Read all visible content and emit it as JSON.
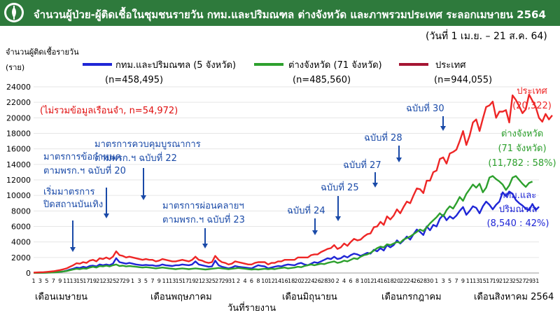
{
  "header": {
    "title": "จำนวนผู้ป่วย-ผู้ติดเชื้อในชุมชนรายวัน กทม.และปริมณฑล ต่างจังหวัด และภาพรวมประเทศ ระลอกเมษายน 2564",
    "date_range": "(วันที่ 1 เม.ย. – 21 ส.ค. 64)"
  },
  "colors": {
    "header_bg": "#2e7a3c",
    "bangkok": "#1f26d6",
    "provinces": "#2da02d",
    "country_legend": "#a51533",
    "country_line": "#ee2626",
    "annotation": "#1a4aa8"
  },
  "legend": [
    {
      "label": "กทม.และปริมณฑล (5 จังหวัด)",
      "total": "(n=458,495)"
    },
    {
      "label": "ต่างจังหวัด (71 จังหวัด)",
      "total": "(n=485,560)"
    },
    {
      "label": "ประเทศ",
      "total": "(n=944,055)"
    }
  ],
  "note": "(ไม่รวมข้อมูลเรือนจำ, n=54,972)",
  "chart_data": {
    "type": "line",
    "ylabel": "จำนวนผู้ติดเชื้อรายวัน (ราย)",
    "xlabel": "วันที่รายงาน",
    "ylim": [
      0,
      24000
    ],
    "yticks": [
      0,
      2000,
      4000,
      6000,
      8000,
      10000,
      12000,
      14000,
      16000,
      18000,
      20000,
      22000,
      24000
    ],
    "x_tick_labels": [
      "1",
      "3",
      "5",
      "7",
      "9",
      "11",
      "13",
      "15",
      "17",
      "19",
      "21",
      "23",
      "25",
      "27",
      "29",
      "1",
      "3",
      "5",
      "7",
      "9",
      "11",
      "13",
      "15",
      "17",
      "19",
      "21",
      "23",
      "25",
      "27",
      "29",
      "31",
      "2",
      "4",
      "6",
      "8",
      "10",
      "12",
      "14",
      "16",
      "18",
      "20",
      "22",
      "24",
      "26",
      "28",
      "30",
      "2",
      "4",
      "6",
      "8",
      "10",
      "12",
      "14",
      "16",
      "18",
      "20",
      "22",
      "24",
      "26",
      "28",
      "30",
      "1",
      "3",
      "5",
      "7",
      "9",
      "11",
      "13",
      "15",
      "17",
      "19",
      "21",
      "23",
      "25",
      "27",
      "29",
      "31"
    ],
    "months": [
      "เดือนเมษายน",
      "เดือนพฤษภาคม",
      "เดือนมิถุนายน",
      "เดือนกรกฎาคม",
      "เดือนสิงหาคม 2564"
    ],
    "series": [
      {
        "name": "กทม.และปริมณฑล (5 จังหวัด)",
        "end_label": "กทม.และ\nปริมณฑล\n(8,540 : 42%)",
        "values": [
          20,
          25,
          30,
          40,
          50,
          70,
          90,
          120,
          150,
          200,
          300,
          450,
          550,
          700,
          650,
          800,
          700,
          900,
          950,
          850,
          1100,
          1000,
          1100,
          1000,
          1200,
          1900,
          1400,
          1300,
          1200,
          1300,
          1200,
          1100,
          1050,
          1000,
          1050,
          1000,
          1000,
          900,
          950,
          1100,
          1000,
          950,
          900,
          1000,
          1000,
          1100,
          1050,
          1000,
          1100,
          1500,
          1100,
          1000,
          900,
          800,
          850,
          1600,
          1000,
          800,
          700,
          600,
          700,
          900,
          800,
          750,
          700,
          650,
          600,
          800,
          1000,
          900,
          850,
          600,
          700,
          800,
          900,
          850,
          1000,
          1100,
          1050,
          1000,
          1200,
          1300,
          1100,
          1000,
          1200,
          1400,
          1300,
          1500,
          1700,
          1900,
          1800,
          2100,
          1800,
          1900,
          2200,
          2000,
          2300,
          2500,
          2400,
          2200,
          2400,
          2600,
          2500,
          3000,
          2800,
          3200,
          2900,
          3600,
          3300,
          3600,
          4200,
          3800,
          4200,
          4700,
          4300,
          5000,
          5600,
          5300,
          4900,
          6000,
          5500,
          6200,
          6000,
          7000,
          7500,
          6800,
          7300,
          7000,
          7400,
          8000,
          8500,
          7500,
          8000,
          8600,
          8400,
          7700,
          8600,
          9200,
          8800,
          8200,
          8800,
          9200,
          10400,
          9900,
          10500,
          10200,
          9400,
          9000,
          8700,
          8300,
          8100,
          8900,
          8100,
          8540
        ]
      },
      {
        "name": "ต่างจังหวัด (71 จังหวัด)",
        "end_label": "ต่างจังหวัด\n(71 จังหวัด)\n(11,782 : 58%)",
        "values": [
          15,
          20,
          25,
          30,
          40,
          50,
          70,
          100,
          150,
          200,
          250,
          350,
          450,
          550,
          500,
          600,
          550,
          700,
          800,
          700,
          900,
          850,
          950,
          850,
          1000,
          1100,
          900,
          950,
          850,
          900,
          850,
          800,
          750,
          700,
          750,
          700,
          650,
          600,
          650,
          700,
          650,
          600,
          550,
          500,
          550,
          600,
          550,
          500,
          550,
          600,
          550,
          500,
          450,
          500,
          550,
          600,
          650,
          600,
          550,
          500,
          550,
          600,
          650,
          600,
          550,
          500,
          450,
          500,
          450,
          500,
          550,
          500,
          550,
          500,
          600,
          650,
          700,
          600,
          650,
          700,
          800,
          750,
          900,
          1000,
          1100,
          1000,
          1100,
          1200,
          1150,
          1300,
          1400,
          1500,
          1300,
          1400,
          1600,
          1500,
          1700,
          1900,
          1800,
          2100,
          2300,
          2400,
          2600,
          2900,
          3200,
          3400,
          3300,
          3700,
          3600,
          3800,
          4000,
          3900,
          4300,
          4500,
          4700,
          5000,
          5300,
          5600,
          5400,
          5900,
          6400,
          6800,
          7200,
          7700,
          7300,
          8100,
          8600,
          8300,
          9000,
          9800,
          9300,
          10200,
          10800,
          11400,
          11000,
          11500,
          10400,
          11000,
          12300,
          12500,
          12100,
          11800,
          11400,
          10700,
          11300,
          12300,
          12500,
          12000,
          11500,
          11100,
          11600,
          11782
        ]
      },
      {
        "name": "ประเทศ",
        "end_label": "ประเทศ\n(20,322)",
        "values": [
          50,
          70,
          90,
          110,
          140,
          180,
          230,
          300,
          380,
          480,
          600,
          800,
          1000,
          1250,
          1200,
          1400,
          1300,
          1600,
          1700,
          1500,
          1900,
          1800,
          2000,
          1800,
          2100,
          2800,
          2300,
          2200,
          2000,
          2100,
          2000,
          1900,
          1800,
          1700,
          1800,
          1700,
          1700,
          1500,
          1600,
          1800,
          1700,
          1600,
          1500,
          1500,
          1600,
          1700,
          1600,
          1500,
          1700,
          2100,
          1700,
          1600,
          1400,
          1300,
          1400,
          2200,
          1700,
          1400,
          1300,
          1100,
          1200,
          1500,
          1400,
          1300,
          1200,
          1100,
          1100,
          1300,
          1400,
          1400,
          1400,
          1100,
          1300,
          1300,
          1500,
          1500,
          1700,
          1700,
          1700,
          1700,
          2000,
          2000,
          2000,
          2000,
          2300,
          2400,
          2400,
          2700,
          2900,
          3100,
          3200,
          3600,
          3100,
          3300,
          3800,
          3500,
          4000,
          4400,
          4200,
          4300,
          4700,
          5000,
          5100,
          5900,
          6000,
          6600,
          6200,
          7300,
          6900,
          7400,
          8200,
          7700,
          8500,
          9200,
          9000,
          10000,
          10900,
          10800,
          10300,
          11900,
          11900,
          13000,
          13200,
          14700,
          14900,
          14100,
          15400,
          15600,
          15900,
          17000,
          18300,
          16500,
          17700,
          19400,
          19800,
          18300,
          19900,
          21400,
          21600,
          22100,
          20000,
          20800,
          20800,
          21000,
          19400,
          22900,
          22300,
          21500,
          20600,
          21100,
          23000,
          22200,
          21400,
          20000,
          19500,
          20500,
          19800,
          20322
        ]
      }
    ],
    "annotations": [
      {
        "text": "เริ่มมาตรการ\nปิดสถานบันเทิง"
      },
      {
        "text": "มาตรการข้อกำหนด\nตามพรก.ฯ ฉบับที่ 20"
      },
      {
        "text": "มาตรการควบคุมบูรณาการ\nตามพรก.ฯ ฉบับที่ 22"
      },
      {
        "text": "มาตรการผ่อนคลายฯ\nตามพรก.ฯ ฉบับที่ 23"
      },
      {
        "text": "ฉบับที่ 24"
      },
      {
        "text": "ฉบับที่ 25"
      },
      {
        "text": "ฉบับที่ 27"
      },
      {
        "text": "ฉบับที่ 28"
      },
      {
        "text": "ฉบับที่ 30"
      }
    ]
  }
}
